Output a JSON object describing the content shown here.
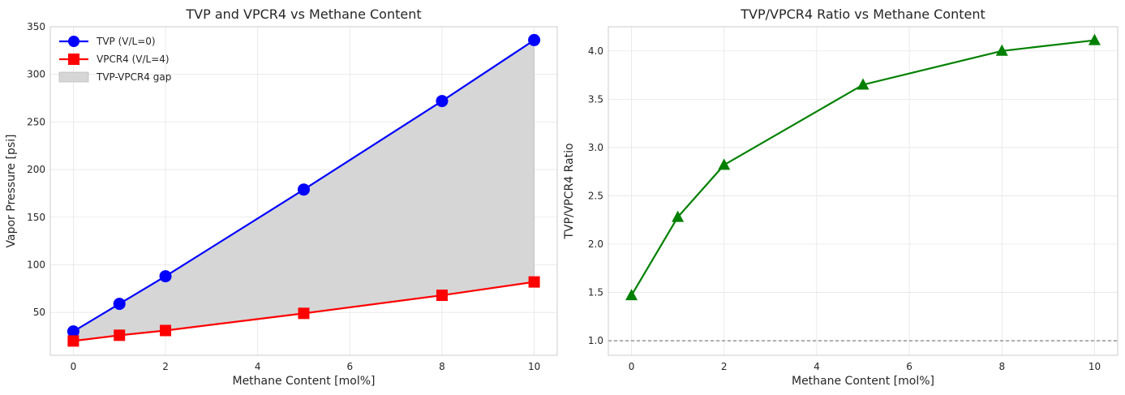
{
  "chart_data": [
    {
      "type": "line",
      "title": "TVP and VPCR4 vs Methane Content",
      "xlabel": "Methane Content [mol%]",
      "ylabel": "Vapor Pressure [psi]",
      "xlim": [
        -0.5,
        10.5
      ],
      "ylim": [
        5,
        350
      ],
      "xticks": [
        0,
        2,
        4,
        6,
        8,
        10
      ],
      "yticks": [
        50,
        100,
        150,
        200,
        250,
        300,
        350
      ],
      "grid": true,
      "legend_position": "top-left",
      "x": [
        0,
        1,
        2,
        5,
        8,
        10
      ],
      "series": [
        {
          "name": "TVP (V/L=0)",
          "values": [
            30,
            59,
            88,
            179,
            272,
            336
          ],
          "color": "#0000ff",
          "marker": "circle"
        },
        {
          "name": "VPCR4 (V/L=4)",
          "values": [
            20,
            26,
            31,
            49,
            68,
            82
          ],
          "color": "#ff0000",
          "marker": "square"
        }
      ],
      "fill_between": {
        "name": "TVP-VPCR4 gap",
        "upper": "TVP (V/L=0)",
        "lower": "VPCR4 (V/L=4)",
        "color": "#d6d6d6"
      }
    },
    {
      "type": "line",
      "title": "TVP/VPCR4 Ratio vs Methane Content",
      "xlabel": "Methane Content [mol%]",
      "ylabel": "TVP/VPCR4 Ratio",
      "xlim": [
        -0.5,
        10.5
      ],
      "ylim": [
        0.85,
        4.25
      ],
      "xticks": [
        0,
        2,
        4,
        6,
        8,
        10
      ],
      "yticks": [
        1.0,
        1.5,
        2.0,
        2.5,
        3.0,
        3.5,
        4.0
      ],
      "grid": true,
      "x": [
        0,
        1,
        2,
        5,
        8,
        10
      ],
      "series": [
        {
          "values": [
            1.47,
            2.28,
            2.82,
            3.65,
            4.0,
            4.11
          ],
          "color": "#008000",
          "marker": "triangle"
        }
      ],
      "reference_line": {
        "y": 1.0,
        "color": "#808080",
        "style": "dashed"
      }
    }
  ]
}
